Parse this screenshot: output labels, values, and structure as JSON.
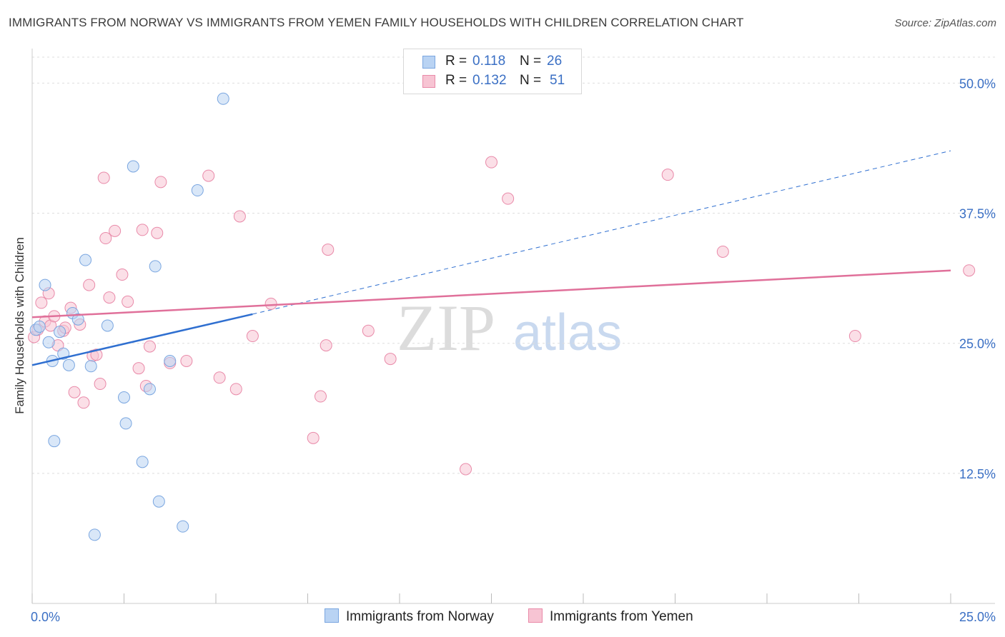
{
  "title": "IMMIGRANTS FROM NORWAY VS IMMIGRANTS FROM YEMEN FAMILY HOUSEHOLDS WITH CHILDREN CORRELATION CHART",
  "source": "Source: ZipAtlas.com",
  "watermark": {
    "zip": "ZIP",
    "atlas": "atlas"
  },
  "legend": {
    "r_label": "R =",
    "n_label": "N =",
    "rows": [
      {
        "r": "0.118",
        "n": "26"
      },
      {
        "r": "0.132",
        "n": "51"
      }
    ]
  },
  "colors": {
    "norway_fill": "#b9d3f3",
    "norway_stroke": "#7aa6e0",
    "norway_line": "#2f6fd0",
    "yemen_fill": "#f7c4d3",
    "yemen_stroke": "#e98aa9",
    "yemen_line": "#e0709a",
    "axis_text": "#3a6fc4",
    "grid": "#dddddd"
  },
  "chart_data": {
    "type": "scatter",
    "ylabel": "Family Households with Children",
    "xlim": [
      0,
      25
    ],
    "ylim": [
      0,
      52.5
    ],
    "x_tick_labels": [
      "0.0%",
      "25.0%"
    ],
    "y_ticks": [
      12.5,
      25.0,
      37.5,
      50.0
    ],
    "y_tick_labels": [
      "12.5%",
      "25.0%",
      "37.5%",
      "50.0%"
    ],
    "grid": true,
    "series": [
      {
        "name": "Immigrants from Norway",
        "x": [
          0.1,
          0.2,
          0.35,
          0.45,
          0.55,
          0.6,
          0.75,
          0.85,
          1.0,
          1.1,
          1.25,
          1.45,
          1.6,
          1.7,
          2.05,
          2.5,
          2.55,
          2.75,
          3.0,
          3.2,
          3.35,
          3.45,
          3.75,
          4.1,
          4.5,
          5.2
        ],
        "y": [
          26.3,
          26.6,
          30.6,
          25.1,
          23.3,
          15.6,
          26.1,
          24.0,
          22.9,
          27.9,
          27.3,
          33.0,
          22.8,
          6.6,
          26.7,
          19.8,
          17.3,
          42.0,
          13.6,
          20.6,
          32.4,
          9.8,
          23.3,
          7.4,
          39.7,
          48.5
        ]
      },
      {
        "name": "Immigrants from Yemen",
        "x": [
          0.05,
          0.15,
          0.25,
          0.35,
          0.45,
          0.5,
          0.6,
          0.7,
          0.85,
          0.9,
          1.05,
          1.15,
          1.3,
          1.4,
          1.55,
          1.65,
          1.75,
          1.85,
          1.95,
          2.0,
          2.1,
          2.25,
          2.45,
          2.6,
          2.9,
          3.0,
          3.1,
          3.2,
          3.4,
          3.5,
          3.75,
          4.2,
          4.8,
          5.1,
          5.55,
          5.65,
          6.0,
          6.5,
          8.0,
          7.65,
          7.85,
          8.05,
          9.15,
          9.75,
          11.8,
          12.5,
          12.95,
          17.3,
          18.8,
          22.4,
          25.5
        ],
        "y": [
          25.6,
          26.3,
          28.9,
          27.1,
          29.8,
          26.7,
          27.6,
          24.8,
          26.2,
          26.5,
          28.4,
          20.3,
          26.8,
          19.3,
          30.6,
          23.8,
          23.9,
          21.1,
          40.9,
          35.1,
          29.4,
          35.8,
          31.6,
          29.0,
          22.6,
          35.9,
          20.9,
          24.7,
          35.6,
          40.5,
          23.1,
          23.3,
          41.1,
          21.7,
          20.6,
          37.2,
          25.7,
          28.8,
          24.8,
          15.9,
          19.9,
          34.0,
          26.2,
          23.5,
          12.9,
          42.4,
          38.9,
          41.2,
          33.8,
          25.7,
          32.0
        ]
      }
    ],
    "trendlines": [
      {
        "series": "Immigrants from Norway",
        "x": [
          0,
          6.0
        ],
        "y": [
          22.9,
          27.8
        ],
        "dashed_extension_to_x": 25.0,
        "dashed_extension_y": 43.5
      },
      {
        "series": "Immigrants from Yemen",
        "x": [
          0,
          25.0
        ],
        "y": [
          27.5,
          32.0
        ]
      }
    ],
    "legend_position": "top-center"
  }
}
